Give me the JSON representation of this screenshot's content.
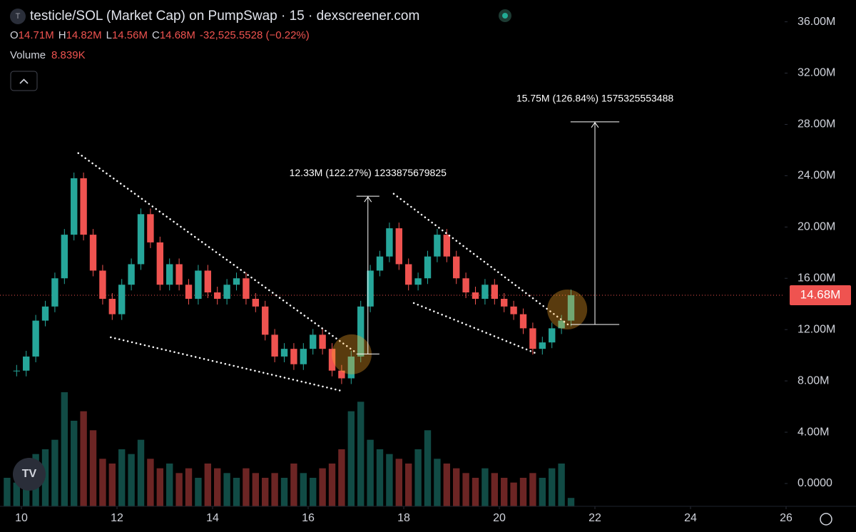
{
  "chart_data": {
    "type": "candlestick",
    "title": "testicle/SOL (Market Cap) on PumpSwap · 15 · dexscreener.com",
    "legend_items": [
      {
        "label": "O",
        "value": "14.71M"
      },
      {
        "label": "H",
        "value": "14.82M"
      },
      {
        "label": "L",
        "value": "14.56M"
      },
      {
        "label": "C",
        "value": "14.68M"
      }
    ],
    "change": "-32,525.5528 (−0.22%)",
    "volume_label": "Volume",
    "volume_value": "8.839K",
    "x": [
      9.7,
      9.9,
      10.1,
      10.3,
      10.5,
      10.7,
      10.9,
      11.1,
      11.3,
      11.5,
      11.7,
      11.9,
      12.1,
      12.3,
      12.5,
      12.7,
      12.9,
      13.1,
      13.3,
      13.5,
      13.7,
      13.9,
      14.1,
      14.3,
      14.5,
      14.7,
      14.9,
      15.1,
      15.3,
      15.5,
      15.7,
      15.9,
      16.1,
      16.3,
      16.5,
      16.7,
      16.9,
      17.1,
      17.3,
      17.5,
      17.7,
      17.9,
      18.1,
      18.3,
      18.5,
      18.7,
      18.9,
      19.1,
      19.3,
      19.5,
      19.7,
      19.9,
      20.1,
      20.3,
      20.5,
      20.7,
      20.9,
      21.1,
      21.3,
      21.5
    ],
    "series": [
      {
        "name": "Market Cap",
        "values": [
          8800000,
          8800000,
          9900000,
          12700000,
          13800000,
          16000000,
          19400000,
          23800000,
          19400000,
          16600000,
          14400000,
          13200000,
          15500000,
          17100000,
          21000000,
          18800000,
          15500000,
          17100000,
          15500000,
          14400000,
          16600000,
          14900000,
          14400000,
          15500000,
          16000000,
          14400000,
          13800000,
          11600000,
          9900000,
          10500000,
          9300000,
          10500000,
          11600000,
          10500000,
          8800000,
          8200000,
          9900000,
          13800000,
          16600000,
          17700000,
          19900000,
          17100000,
          15500000,
          16000000,
          17700000,
          19400000,
          17700000,
          16000000,
          14900000,
          14400000,
          15500000,
          14400000,
          13800000,
          13200000,
          12100000,
          10500000,
          11000000,
          12100000,
          12700000,
          14680000
        ]
      },
      {
        "name": "Volume",
        "values": [
          30,
          25,
          40,
          55,
          60,
          70,
          120,
          90,
          100,
          80,
          50,
          45,
          60,
          55,
          70,
          50,
          40,
          45,
          35,
          40,
          30,
          45,
          40,
          35,
          30,
          40,
          35,
          30,
          35,
          30,
          45,
          35,
          30,
          40,
          45,
          60,
          100,
          110,
          70,
          60,
          55,
          50,
          45,
          60,
          80,
          50,
          45,
          40,
          35,
          30,
          40,
          35,
          30,
          25,
          30,
          35,
          30,
          40,
          45,
          8.839
        ]
      }
    ],
    "up_color": "#26a69a",
    "down_color": "#ef5350",
    "xlim": [
      9.552,
      25.97
    ],
    "ylim": [
      -1780000,
      37700000
    ],
    "xticks": [
      10,
      12,
      14,
      16,
      18,
      20,
      22,
      24,
      26
    ],
    "yticks": [
      {
        "value": 0,
        "label": "0.0000"
      },
      {
        "value": 4000000,
        "label": "4.00M"
      },
      {
        "value": 8000000,
        "label": "8.00M"
      },
      {
        "value": 12000000,
        "label": "12.00M"
      },
      {
        "value": 16000000,
        "label": "16.00M"
      },
      {
        "value": 20000000,
        "label": "20.00M"
      },
      {
        "value": 24000000,
        "label": "24.00M"
      },
      {
        "value": 28000000,
        "label": "28.00M"
      },
      {
        "value": 32000000,
        "label": "32.00M"
      },
      {
        "value": 36000000,
        "label": "36.00M"
      }
    ],
    "last_price": {
      "value": 14680000,
      "label": "14.68M"
    },
    "trendlines": [
      [
        11.19,
        25760000,
        17.01,
        10180000
      ],
      [
        11.87,
        11400000,
        16.69,
        7230000
      ],
      [
        17.79,
        22590000,
        21.49,
        12240000
      ],
      [
        18.21,
        14070000,
        20.82,
        10070000
      ]
    ],
    "highlights": [
      [
        16.91,
        10070000
      ],
      [
        21.42,
        13570000
      ]
    ],
    "measures": [
      {
        "x_from": 17.01,
        "x_to": 17.49,
        "from": 10100000,
        "to": 22400000,
        "label": "12.33M (122.27%) 1233875679825"
      },
      {
        "x_from": 21.49,
        "x_to": 22.51,
        "from": 12400000,
        "to": 28200000,
        "label": "15.75M (126.84%) 1575325553488"
      }
    ]
  }
}
